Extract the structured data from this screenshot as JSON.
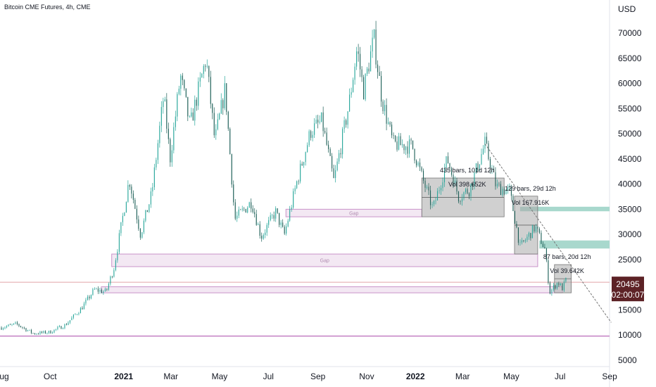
{
  "header": {
    "title": "Bitcoin CME Futures, 4h, CME"
  },
  "price_tag": {
    "price": "20495",
    "countdown": "02:00:07",
    "color": "#5d2226"
  },
  "colors": {
    "candle": "#26a69a",
    "gap_fill": "#f3e8f3",
    "gap_border": "#c993c9",
    "zone": "#a9a9a9",
    "support": "#9fd4c8",
    "line": "#c47fc4"
  },
  "chart_data": {
    "type": "candlestick",
    "title": "Bitcoin CME Futures, 4h, CME",
    "ylabel": "USD",
    "ylim": [
      3000,
      75000
    ],
    "xlim": [
      "2020-08-01",
      "2022-09-15"
    ],
    "y_ticks": [
      5000,
      10000,
      15000,
      20000,
      25000,
      30000,
      35000,
      40000,
      45000,
      50000,
      55000,
      60000,
      65000,
      70000
    ],
    "x_ticks": [
      {
        "date": "2020-08-01",
        "label": "Aug",
        "year": false
      },
      {
        "date": "2020-10-01",
        "label": "Oct",
        "year": false
      },
      {
        "date": "2021-01-01",
        "label": "2021",
        "year": true
      },
      {
        "date": "2021-03-01",
        "label": "Mar",
        "year": false
      },
      {
        "date": "2021-05-01",
        "label": "May",
        "year": false
      },
      {
        "date": "2021-07-01",
        "label": "Jul",
        "year": false
      },
      {
        "date": "2021-09-01",
        "label": "Sep",
        "year": false
      },
      {
        "date": "2021-11-01",
        "label": "Nov",
        "year": false
      },
      {
        "date": "2022-01-01",
        "label": "2022",
        "year": true
      },
      {
        "date": "2022-03-01",
        "label": "Mar",
        "year": false
      },
      {
        "date": "2022-05-01",
        "label": "May",
        "year": false
      },
      {
        "date": "2022-07-01",
        "label": "Jul",
        "year": false
      },
      {
        "date": "2022-09-01",
        "label": "Sep",
        "year": false
      }
    ],
    "price_path": [
      [
        "2020-08-01",
        11500
      ],
      [
        "2020-08-20",
        12200
      ],
      [
        "2020-09-10",
        10300
      ],
      [
        "2020-10-01",
        10600
      ],
      [
        "2020-10-20",
        12000
      ],
      [
        "2020-11-10",
        15500
      ],
      [
        "2020-11-25",
        19000
      ],
      [
        "2020-12-10",
        18600
      ],
      [
        "2020-12-20",
        23500
      ],
      [
        "2021-01-08",
        41000
      ],
      [
        "2021-01-22",
        30000
      ],
      [
        "2021-02-05",
        38000
      ],
      [
        "2021-02-20",
        57500
      ],
      [
        "2021-02-28",
        45000
      ],
      [
        "2021-03-13",
        61500
      ],
      [
        "2021-03-25",
        51500
      ],
      [
        "2021-04-14",
        65000
      ],
      [
        "2021-04-25",
        48500
      ],
      [
        "2021-05-08",
        59000
      ],
      [
        "2021-05-20",
        33000
      ],
      [
        "2021-06-10",
        36500
      ],
      [
        "2021-06-22",
        29500
      ],
      [
        "2021-07-10",
        34500
      ],
      [
        "2021-07-21",
        29900
      ],
      [
        "2021-08-05",
        40000
      ],
      [
        "2021-08-23",
        50500
      ],
      [
        "2021-09-06",
        52500
      ],
      [
        "2021-09-21",
        40500
      ],
      [
        "2021-10-10",
        56000
      ],
      [
        "2021-10-20",
        67000
      ],
      [
        "2021-10-28",
        58500
      ],
      [
        "2021-11-10",
        69000
      ],
      [
        "2021-11-20",
        57000
      ],
      [
        "2021-12-04",
        48000
      ],
      [
        "2021-12-28",
        47500
      ],
      [
        "2022-01-10",
        41000
      ],
      [
        "2022-01-23",
        35000
      ],
      [
        "2022-02-10",
        45000
      ],
      [
        "2022-02-24",
        37500
      ],
      [
        "2022-03-10",
        39000
      ],
      [
        "2022-03-29",
        48000
      ],
      [
        "2022-04-12",
        39500
      ],
      [
        "2022-04-29",
        38500
      ],
      [
        "2022-05-12",
        27500
      ],
      [
        "2022-05-31",
        31500
      ],
      [
        "2022-06-12",
        27000
      ],
      [
        "2022-06-18",
        18500
      ],
      [
        "2022-06-28",
        20500
      ],
      [
        "2022-07-04",
        19300
      ],
      [
        "2022-07-09",
        21200
      ]
    ],
    "gaps": [
      {
        "label": "Gap",
        "start": "2021-07-23",
        "end": "2022-01-09",
        "low": 33500,
        "high": 35000
      },
      {
        "label": "Gap",
        "start": "2020-12-17",
        "end": "2022-06-03",
        "low": 23600,
        "high": 26100
      },
      {
        "label": "",
        "start": "2020-12-04",
        "end": "2022-07-04",
        "low": 18400,
        "high": 19600
      }
    ],
    "ranges": [
      {
        "bars": "435 bars, 101d 12h",
        "volume": "Vol 398.652K",
        "start": "2022-01-09",
        "end": "2022-04-22",
        "low": 33500,
        "high": 41200
      },
      {
        "bars": "129 bars, 29d 12h",
        "volume": "Vol 167.916K",
        "start": "2022-05-05",
        "end": "2022-06-03",
        "low": 26100,
        "high": 37600
      },
      {
        "bars": "87 bars, 20d 12h",
        "volume": "Vol 39.642K",
        "start": "2022-06-24",
        "end": "2022-07-15",
        "low": 18400,
        "high": 24000
      }
    ],
    "support_zones": [
      {
        "start": "2022-05-12",
        "low": 34600,
        "high": 35500
      },
      {
        "start": "2022-06-05",
        "low": 27200,
        "high": 28800
      }
    ],
    "horizontal_lines": [
      20495,
      9800
    ],
    "trendline": {
      "start": [
        "2022-03-29",
        48000
      ],
      "end": [
        "2022-09-03",
        12500
      ]
    }
  }
}
